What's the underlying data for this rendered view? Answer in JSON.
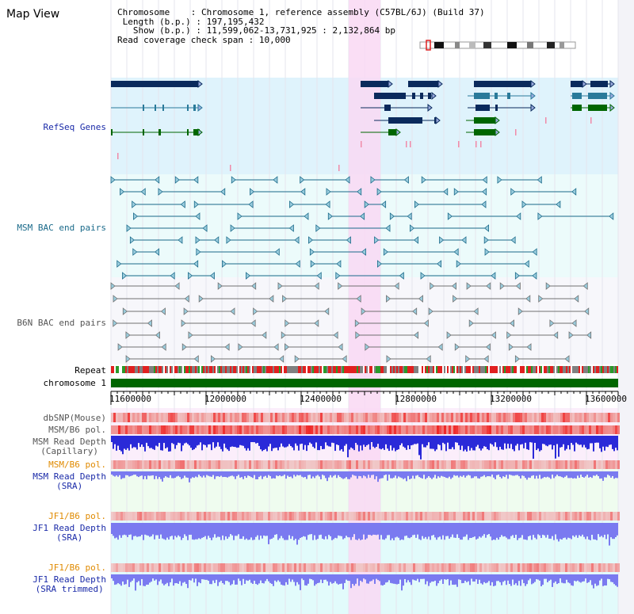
{
  "page": {
    "title": "Map View"
  },
  "info": {
    "chromosome_label": "Chromosome",
    "chromosome_value": "Chromosome 1, reference assembly (C57BL/6J) (Build 37)",
    "length_label": "Length (b.p.)",
    "length_value": "197,195,432",
    "show_label": "Show (b.p.)",
    "show_value": "11,599,062-13,731,925 : 2,132,864 bp",
    "coverage_label": "Read coverage check span",
    "coverage_value": "10,000"
  },
  "tracks": {
    "refseq": "RefSeq Genes",
    "msm_bac": "MSM BAC end pairs",
    "b6n_bac": "B6N BAC end pairs",
    "repeat": "Repeat",
    "chromosome": "chromosome 1",
    "dbsnp": "dbSNP(Mouse)",
    "msm_b6_pol_1": "MSM/B6 pol.",
    "msm_read_depth_cap": "MSM Read Depth",
    "msm_read_depth_cap_sub": "(Capillary)",
    "msm_b6_pol_2": "MSM/B6 pol.",
    "msm_read_depth_sra": "MSM Read Depth",
    "msm_read_depth_sra_sub": "(SRA)",
    "jf1_b6_pol_1": "JF1/B6 pol.",
    "jf1_read_depth_sra": "JF1 Read Depth",
    "jf1_read_depth_sra_sub": "(SRA)",
    "jf1_b6_pol_2": "JF1/B6 pol.",
    "jf1_read_depth_trim": "JF1 Read Depth",
    "jf1_read_depth_trim_sub": "(SRA trimmed)"
  },
  "axis": {
    "ticks": [
      "11600000",
      "12000000",
      "12400000",
      "12800000",
      "13200000",
      "13600000"
    ]
  },
  "colors": {
    "gene_dark": "#0a2a5c",
    "gene_green": "#006600",
    "gene_teal": "#2a7a9a",
    "msm_bac": "#1a6a8a",
    "b6n_bac": "#707070",
    "chromosome_bar": "#006600",
    "highlight": "#f9d8f3",
    "read_depth_blue": "#2a2ad8",
    "read_depth_light": "#7a7af0"
  }
}
